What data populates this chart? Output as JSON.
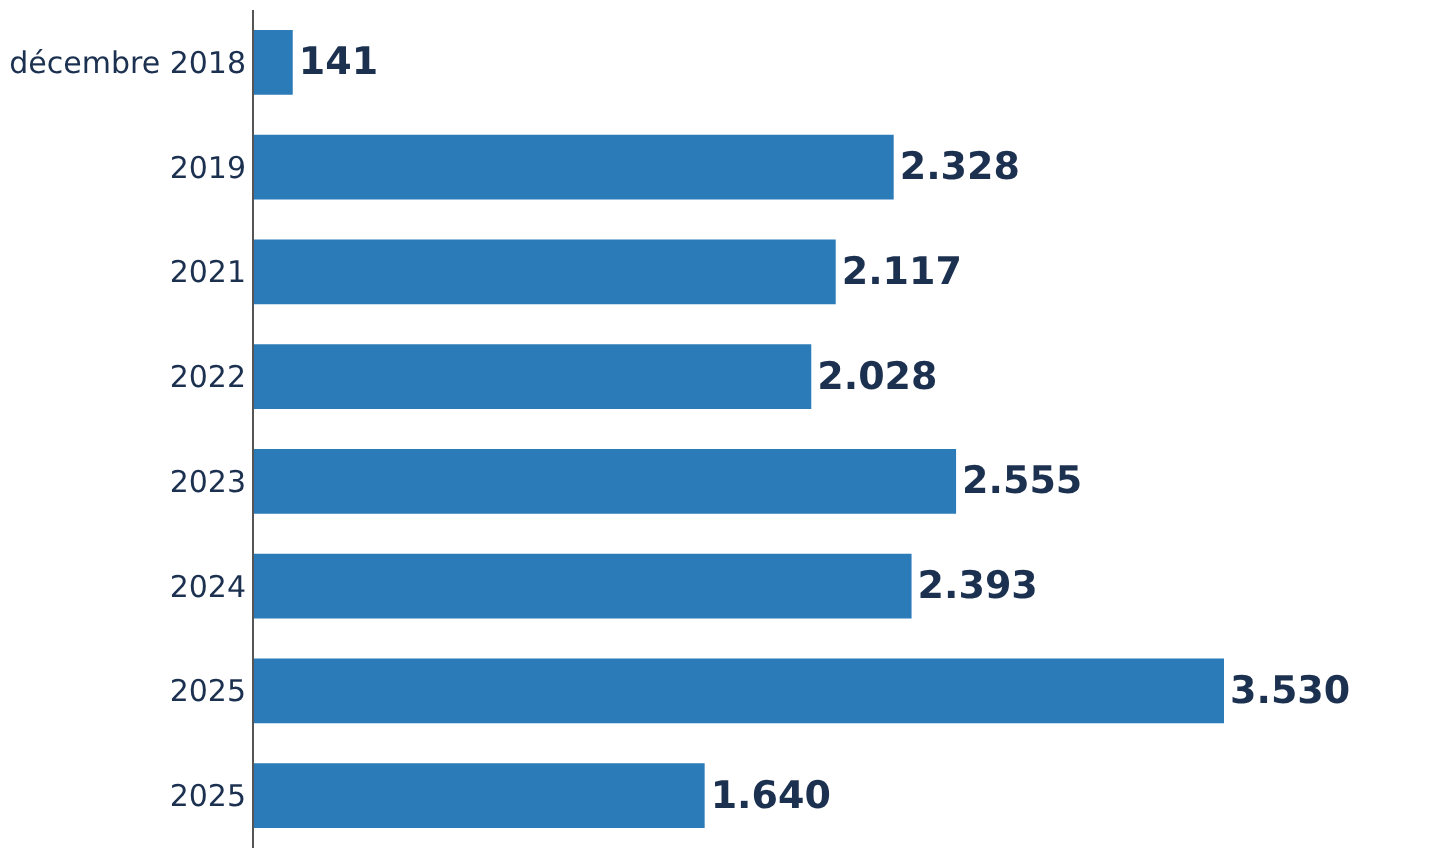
{
  "chart_data": {
    "type": "bar",
    "orientation": "horizontal",
    "categories": [
      "décembre 2018",
      "2019",
      "2021",
      "2022",
      "2023",
      "2024",
      "2025",
      "2025"
    ],
    "values": [
      141,
      2328,
      2117,
      2028,
      2555,
      2393,
      3530,
      1640
    ],
    "value_labels": [
      "141",
      "2.328",
      "2.117",
      "2.028",
      "2.555",
      "2.393",
      "3.530",
      "1.640"
    ],
    "color": "#2b7bb9"
  }
}
